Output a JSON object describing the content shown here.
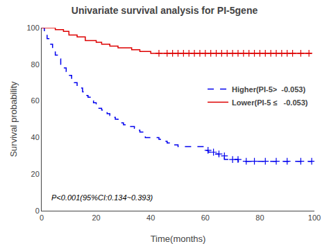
{
  "chart_data": {
    "type": "step",
    "title": "Univariate survival analysis for PI-5gene",
    "x_label": "Time(months)",
    "y_label": "Survival probability",
    "xlim": [
      0,
      100
    ],
    "ylim": [
      0,
      100
    ],
    "xticks": [
      0,
      20,
      40,
      60,
      80,
      100
    ],
    "yticks": [
      0,
      20,
      40,
      60,
      80,
      100
    ],
    "grid": false,
    "legend": "right",
    "annotation": "P<0.001(95%CI:0.134~0.393)",
    "series": [
      {
        "name": "Higher(PI-5>  -0.053)",
        "color": "#0000ee",
        "line_style": "dashed",
        "marker": "plus",
        "x": [
          0,
          1,
          2,
          3,
          4,
          5,
          6,
          7,
          8,
          9,
          10,
          11,
          12,
          13,
          14,
          15,
          16,
          17,
          18,
          19,
          20,
          21,
          22,
          23,
          24,
          25,
          26,
          27,
          28,
          29,
          30,
          31,
          32,
          33,
          34,
          35,
          36,
          37,
          38,
          39,
          40,
          41,
          42,
          43,
          44,
          45,
          46,
          47,
          48,
          49,
          50,
          51,
          52,
          53,
          54,
          55,
          56,
          57,
          58,
          59,
          60,
          61,
          63,
          65,
          67,
          70,
          72,
          75,
          78,
          82,
          86,
          90,
          95,
          99
        ],
        "values": [
          100,
          97,
          94,
          91,
          88,
          85,
          83,
          80,
          78,
          76,
          74,
          72,
          70,
          68,
          67,
          65,
          63,
          62,
          60,
          59,
          57,
          56,
          55,
          54,
          53,
          52,
          51,
          50,
          49,
          48,
          47,
          46,
          46,
          46,
          45,
          44,
          43,
          43,
          40,
          40,
          40,
          40,
          40,
          39,
          39,
          38,
          37,
          36,
          36,
          36,
          35,
          35,
          35,
          35,
          35,
          35,
          35,
          35,
          35,
          35,
          33,
          32,
          31,
          30,
          28,
          28,
          27,
          27,
          27,
          27,
          27,
          27,
          27,
          27
        ],
        "censor_x": [
          61,
          63,
          65,
          67,
          70,
          72,
          75,
          78,
          82,
          86,
          90,
          95,
          99
        ],
        "censor_values": [
          33,
          32,
          31,
          30,
          28,
          28,
          27,
          27,
          27,
          27,
          27,
          27,
          27
        ]
      },
      {
        "name": "Lower(PI-5 ≤   -0.053)",
        "color": "#dd0000",
        "line_style": "solid",
        "marker": "plus",
        "x": [
          0,
          5,
          8,
          10,
          13,
          16,
          20,
          22,
          25,
          28,
          30,
          33,
          36,
          40,
          43,
          46,
          50,
          55,
          60,
          65,
          70,
          75,
          80,
          85,
          90,
          95,
          99
        ],
        "values": [
          100,
          99,
          98,
          96,
          95,
          93,
          92,
          91,
          90,
          89,
          89,
          88,
          87,
          86,
          86,
          86,
          86,
          86,
          86,
          86,
          86,
          86,
          86,
          86,
          86,
          86,
          86
        ],
        "censor_x": [
          43,
          46,
          48,
          50,
          52,
          54,
          56,
          58,
          60,
          62,
          64,
          66,
          68,
          70,
          72,
          74,
          76,
          78,
          80,
          82,
          84,
          86,
          88,
          90,
          92,
          95,
          98
        ],
        "censor_values": [
          86,
          86,
          86,
          86,
          86,
          86,
          86,
          86,
          86,
          86,
          86,
          86,
          86,
          86,
          86,
          86,
          86,
          86,
          86,
          86,
          86,
          86,
          86,
          86,
          86,
          86,
          86
        ]
      }
    ]
  }
}
